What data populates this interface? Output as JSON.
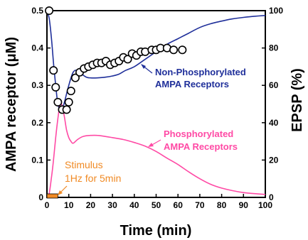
{
  "chart_data": {
    "type": "line",
    "xlabel": "Time (min)",
    "ylabel_left": "AMPA receptor (μM)",
    "ylabel_right": "EPSP (%)",
    "xlim": [
      0,
      100
    ],
    "ylim_left": [
      0,
      0.5
    ],
    "ylim_right": [
      0,
      100
    ],
    "x_ticks": [
      "0",
      "10",
      "20",
      "30",
      "40",
      "50",
      "60",
      "70",
      "80",
      "90",
      "100"
    ],
    "y_ticks_left": [
      "0",
      "0.1",
      "0.2",
      "0.3",
      "0.4",
      "0.5"
    ],
    "y_ticks_right": [
      "0",
      "20",
      "40",
      "60",
      "80",
      "100"
    ],
    "series": [
      {
        "name": "Non-Phosphorylated AMPA Receptors",
        "axis": "left",
        "color": "#1f2f9a",
        "x": [
          0,
          1,
          2,
          3,
          4,
          5,
          6,
          7,
          8,
          10,
          12,
          14,
          16,
          18,
          20,
          23,
          27,
          30,
          33,
          36,
          40,
          45,
          50,
          55,
          60,
          65,
          70,
          75,
          80,
          85,
          90,
          95,
          100
        ],
        "y": [
          0.5,
          0.48,
          0.43,
          0.36,
          0.3,
          0.25,
          0.235,
          0.235,
          0.255,
          0.3,
          0.335,
          0.34,
          0.33,
          0.322,
          0.32,
          0.32,
          0.322,
          0.325,
          0.33,
          0.34,
          0.35,
          0.37,
          0.39,
          0.41,
          0.425,
          0.44,
          0.455,
          0.465,
          0.472,
          0.478,
          0.482,
          0.485,
          0.487
        ]
      },
      {
        "name": "Phosphorylated AMPA Receptors",
        "axis": "left",
        "color": "#ff4aa5",
        "x": [
          0,
          1,
          2,
          3,
          4,
          5,
          6,
          7,
          8,
          9,
          10,
          11,
          12,
          14,
          16,
          18,
          20,
          23,
          27,
          30,
          35,
          40,
          45,
          50,
          55,
          60,
          65,
          70,
          75,
          80,
          85,
          90,
          95,
          100
        ],
        "y": [
          0.0,
          0.01,
          0.05,
          0.1,
          0.16,
          0.21,
          0.25,
          0.245,
          0.215,
          0.18,
          0.16,
          0.15,
          0.145,
          0.155,
          0.162,
          0.165,
          0.166,
          0.166,
          0.163,
          0.16,
          0.155,
          0.147,
          0.137,
          0.123,
          0.105,
          0.088,
          0.068,
          0.05,
          0.035,
          0.025,
          0.018,
          0.013,
          0.01,
          0.008
        ]
      },
      {
        "name": "EPSP",
        "axis": "right",
        "type": "scatter",
        "color": "#000000",
        "x": [
          1,
          3,
          4,
          5,
          7,
          9,
          10,
          11,
          13,
          15,
          17,
          19,
          21,
          23,
          25,
          27,
          29,
          31,
          33,
          35,
          37,
          39,
          41,
          43,
          45,
          48,
          50,
          52,
          55,
          58,
          62
        ],
        "y": [
          100,
          68,
          59,
          51,
          47,
          47,
          51,
          57,
          64,
          67,
          69,
          70,
          71,
          72,
          72,
          73,
          71,
          72,
          73,
          75,
          74,
          77,
          76,
          78,
          78,
          79,
          79,
          80,
          80,
          79,
          79
        ]
      }
    ],
    "stimulus_bar": {
      "x_start": 0,
      "x_end": 5,
      "color": "#f08a24"
    },
    "annotations": {
      "non_phos_line1": "Non-Phosphorylated",
      "non_phos_line2": "AMPA Receptors",
      "phos_line1": "Phosphorylated",
      "phos_line2": "AMPA Receptors",
      "stim_line1": "Stimulus",
      "stim_line2": "1Hz for 5min"
    },
    "colors": {
      "non_phos_text": "#1f2f9a",
      "phos_text": "#ff4aa5",
      "stim_text": "#f08a24"
    }
  }
}
